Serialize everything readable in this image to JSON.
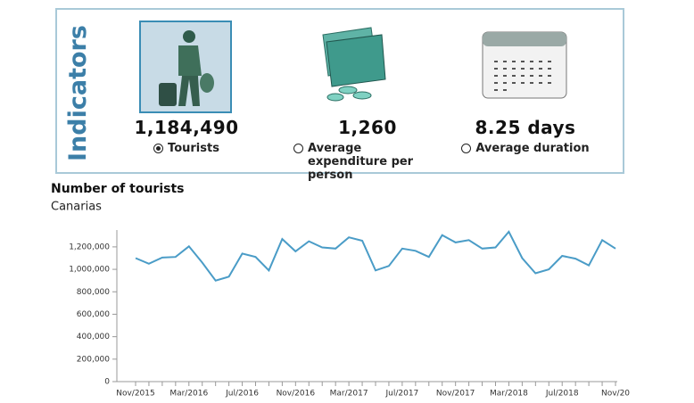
{
  "indicators": {
    "title": "Indicators",
    "items": [
      {
        "value": "1,184,490",
        "label": "Tourists",
        "selected": true
      },
      {
        "value": "1,260",
        "label": "Average expenditure per person",
        "selected": false
      },
      {
        "value": "8.25 days",
        "label": "Average duration",
        "selected": false
      }
    ]
  },
  "chart_data": {
    "type": "line",
    "title": "Number of tourists",
    "subtitle": "Canarias",
    "categories": [
      "Nov/2015",
      null,
      null,
      null,
      "Mar/2016",
      null,
      null,
      null,
      "Jul/2016",
      null,
      null,
      null,
      "Nov/2016",
      null,
      null,
      null,
      "Mar/2017",
      null,
      null,
      null,
      "Jul/2017",
      null,
      null,
      null,
      "Nov/2017",
      null,
      null,
      null,
      "Mar/2018",
      null,
      null,
      null,
      "Jul/2018",
      null,
      null,
      null,
      "Nov/20"
    ],
    "values": [
      1100000,
      1050000,
      1105000,
      1110000,
      1205000,
      1060000,
      900000,
      935000,
      1140000,
      1110000,
      990000,
      1270000,
      1160000,
      1250000,
      1195000,
      1185000,
      1285000,
      1255000,
      990000,
      1030000,
      1185000,
      1165000,
      1110000,
      1305000,
      1240000,
      1260000,
      1185000,
      1195000,
      1335000,
      1100000,
      965000,
      1000000,
      1120000,
      1095000,
      1035000,
      1260000,
      1184490
    ],
    "color": "#4a9cc7",
    "ylim": [
      0,
      1350000
    ],
    "yticks": [
      {
        "value": 0,
        "label": "0"
      },
      {
        "value": 200000,
        "label": "200,000"
      },
      {
        "value": 400000,
        "label": "400,000"
      },
      {
        "value": 600000,
        "label": "600,000"
      },
      {
        "value": 800000,
        "label": "800,000"
      },
      {
        "value": 1000000,
        "label": "1,000,000"
      },
      {
        "value": 1200000,
        "label": "1,200,000"
      }
    ]
  }
}
